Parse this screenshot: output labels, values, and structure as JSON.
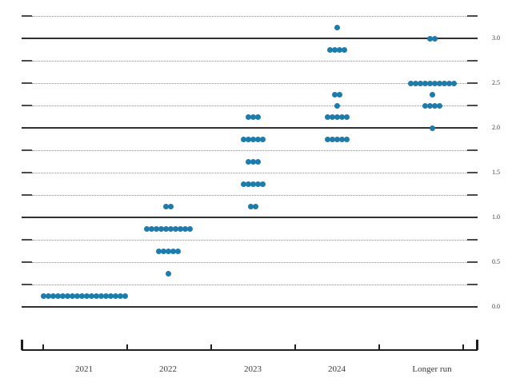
{
  "chart": {
    "dot_color": "#1b7cae",
    "solid_line_color": "#2f2f2f",
    "dotted_line_color": "#8c8c8c",
    "axis_color": "#1f1f1f",
    "text_color": "#3a3a3a",
    "background_color": "#ffffff"
  },
  "chart_data": {
    "type": "scatter",
    "title": "",
    "xlabel": "",
    "ylabel": "",
    "x_categories": [
      "2021",
      "2022",
      "2023",
      "2024",
      "Longer run"
    ],
    "y_axis": {
      "min": 0.0,
      "max": 3.25,
      "gridline_step": 0.25,
      "solid_gridlines": [
        0.0,
        1.0,
        2.0,
        3.0
      ],
      "tick_labels": [
        "0.0",
        "0.5",
        "1.0",
        "1.5",
        "2.0",
        "2.5",
        "3.0"
      ],
      "tick_label_values": [
        0.0,
        0.5,
        1.0,
        1.5,
        2.0,
        2.5,
        3.0
      ],
      "labels_side": "right"
    },
    "grid": "horizontal-only",
    "legend": "none",
    "series": [
      {
        "category": "2021",
        "dots": [
          {
            "rate": 0.125,
            "count": 18
          }
        ]
      },
      {
        "category": "2022",
        "dots": [
          {
            "rate": 1.125,
            "count": 2
          },
          {
            "rate": 0.875,
            "count": 10
          },
          {
            "rate": 0.625,
            "count": 5
          },
          {
            "rate": 0.375,
            "count": 1
          }
        ]
      },
      {
        "category": "2023",
        "dots": [
          {
            "rate": 2.125,
            "count": 3
          },
          {
            "rate": 1.875,
            "count": 5
          },
          {
            "rate": 1.625,
            "count": 3
          },
          {
            "rate": 1.375,
            "count": 5
          },
          {
            "rate": 1.125,
            "count": 2
          }
        ]
      },
      {
        "category": "2024",
        "dots": [
          {
            "rate": 3.125,
            "count": 1
          },
          {
            "rate": 2.875,
            "count": 4
          },
          {
            "rate": 2.375,
            "count": 2
          },
          {
            "rate": 2.25,
            "count": 1
          },
          {
            "rate": 2.125,
            "count": 5
          },
          {
            "rate": 1.875,
            "count": 5
          }
        ]
      },
      {
        "category": "Longer run",
        "dots": [
          {
            "rate": 3.0,
            "count": 2
          },
          {
            "rate": 2.5,
            "count": 10
          },
          {
            "rate": 2.375,
            "count": 1
          },
          {
            "rate": 2.25,
            "count": 4
          },
          {
            "rate": 2.0,
            "count": 1
          }
        ]
      }
    ]
  }
}
